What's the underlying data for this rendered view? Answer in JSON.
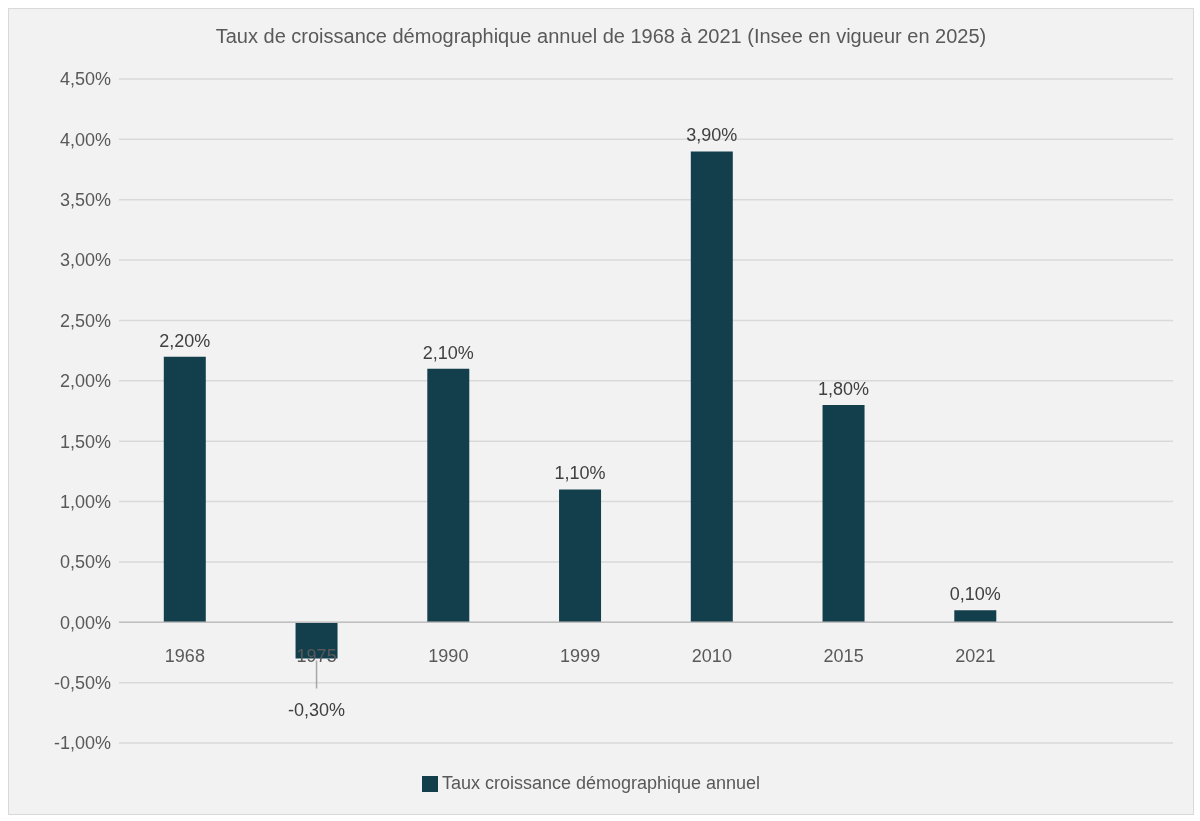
{
  "chart_data": {
    "type": "bar",
    "title": "Taux de croissance démographique annuel de 1968 à 2021 (Insee en vigueur en 2025)",
    "categories": [
      "1968",
      "1975",
      "1990",
      "1999",
      "2010",
      "2015",
      "2021",
      null
    ],
    "series": [
      {
        "name": "Taux croissance démographique annuel",
        "color": "#133f4d",
        "values": [
          2.2,
          -0.3,
          2.1,
          1.1,
          3.9,
          1.8,
          0.1,
          null
        ],
        "value_labels": [
          "2,20%",
          "-0,30%",
          "2,10%",
          "1,10%",
          "3,90%",
          "1,80%",
          "0,10%",
          null
        ]
      }
    ],
    "ylim": [
      -1,
      4.5
    ],
    "yticks": [
      {
        "value": -1,
        "label": "-1,00%"
      },
      {
        "value": -0.5,
        "label": "-0,50%"
      },
      {
        "value": 0,
        "label": "0,00%"
      },
      {
        "value": 0.5,
        "label": "0,50%"
      },
      {
        "value": 1,
        "label": "1,00%"
      },
      {
        "value": 1.5,
        "label": "1,50%"
      },
      {
        "value": 2,
        "label": "2,00%"
      },
      {
        "value": 2.5,
        "label": "2,50%"
      },
      {
        "value": 3,
        "label": "3,00%"
      },
      {
        "value": 3.5,
        "label": "3,50%"
      },
      {
        "value": 4,
        "label": "4,00%"
      },
      {
        "value": 4.5,
        "label": "4,50%"
      }
    ],
    "grid": "y",
    "legend": "bottom"
  }
}
